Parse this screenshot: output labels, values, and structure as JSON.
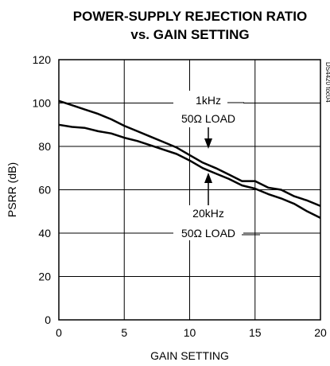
{
  "chart_data": {
    "type": "line",
    "title_line1": "POWER-SUPPLY REJECTION RATIO",
    "title_line2": "vs. GAIN SETTING",
    "xlabel": "GAIN SETTING",
    "ylabel": "PSRR (dB)",
    "xlim": [
      0,
      20
    ],
    "ylim": [
      0,
      120
    ],
    "xticks": [
      0,
      5,
      10,
      15,
      20
    ],
    "yticks": [
      0,
      20,
      40,
      60,
      80,
      100,
      120
    ],
    "grid": true,
    "doc_id": "DS4420 toc04",
    "series": [
      {
        "label_line1": "1kHz",
        "label_line2": "50Ω LOAD",
        "x": [
          0,
          1,
          2,
          3,
          4,
          5,
          6,
          7,
          8,
          9,
          10,
          11,
          12,
          13,
          14,
          15,
          16,
          17,
          18,
          19,
          20
        ],
        "y": [
          101,
          99,
          97,
          95,
          92.5,
          89.5,
          87,
          84.5,
          82,
          79.5,
          76,
          72.5,
          70,
          67,
          64,
          64,
          61,
          60,
          57,
          55,
          52.5
        ]
      },
      {
        "label_line1": "20kHz",
        "label_line2": "50Ω LOAD",
        "x": [
          0,
          1,
          2,
          3,
          4,
          5,
          6,
          7,
          8,
          9,
          10,
          11,
          12,
          13,
          14,
          15,
          16,
          17,
          18,
          19,
          20
        ],
        "y": [
          90,
          89,
          88.5,
          87,
          86,
          84,
          82.5,
          80.5,
          78.5,
          76.5,
          73.5,
          70,
          67.5,
          65,
          62,
          60.5,
          58,
          56,
          53.5,
          50,
          47
        ]
      }
    ]
  }
}
